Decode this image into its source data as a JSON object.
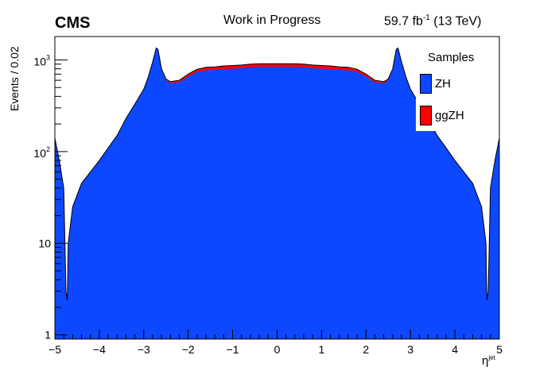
{
  "header": {
    "experiment": "CMS",
    "status": "Work in Progress",
    "lumi_value": "59.7 fb",
    "lumi_exp": "-1",
    "lumi_energy": " (13 TeV)"
  },
  "axes": {
    "ylabel": "Events / 0.02",
    "xlabel_base": "η",
    "xlabel_sup": "jet"
  },
  "legend": {
    "title": "Samples",
    "entries": [
      {
        "label": "ZH",
        "color": "#0d47ff"
      },
      {
        "label": "ggZH",
        "color": "#ff0000"
      }
    ]
  },
  "chart_data": {
    "type": "area",
    "stacked": true,
    "xlim": [
      -5,
      5
    ],
    "ylim": [
      0.9,
      1800
    ],
    "ylog": true,
    "x_ticks": [
      "−5",
      "−4",
      "−3",
      "−2",
      "−1",
      "0",
      "1",
      "2",
      "3",
      "4",
      "5"
    ],
    "y_ticks": [
      {
        "value": 1,
        "label": "1"
      },
      {
        "value": 10,
        "label": "10"
      },
      {
        "value": 100,
        "label": "10",
        "exp": "2"
      },
      {
        "value": 1000,
        "label": "10",
        "exp": "3"
      }
    ],
    "series": [
      {
        "name": "ZH",
        "color": "#0d47ff"
      },
      {
        "name": "ggZH",
        "color": "#ff0000"
      }
    ],
    "x": [
      -5.0,
      -4.9,
      -4.8,
      -4.75,
      -4.72,
      -4.7,
      -4.6,
      -4.4,
      -4.2,
      -4.0,
      -3.8,
      -3.6,
      -3.4,
      -3.2,
      -3.0,
      -2.9,
      -2.8,
      -2.72,
      -2.68,
      -2.6,
      -2.5,
      -2.4,
      -2.2,
      -2.0,
      -1.8,
      -1.6,
      -1.4,
      -1.2,
      -1.0,
      -0.8,
      -0.6,
      -0.4,
      -0.2,
      0.0,
      0.2,
      0.4,
      0.6,
      0.8,
      1.0,
      1.2,
      1.4,
      1.6,
      1.8,
      2.0,
      2.2,
      2.4,
      2.5,
      2.6,
      2.68,
      2.72,
      2.8,
      2.9,
      3.0,
      3.2,
      3.4,
      3.6,
      3.8,
      4.0,
      4.2,
      4.4,
      4.6,
      4.7,
      4.72,
      4.75,
      4.8,
      4.9,
      5.0
    ],
    "values_total": [
      140,
      80,
      40,
      3,
      2.4,
      10,
      25,
      45,
      60,
      80,
      110,
      150,
      230,
      330,
      480,
      650,
      950,
      1350,
      1300,
      800,
      620,
      580,
      600,
      700,
      790,
      830,
      840,
      860,
      870,
      880,
      900,
      910,
      910,
      910,
      910,
      910,
      900,
      880,
      870,
      860,
      840,
      830,
      790,
      700,
      600,
      580,
      620,
      800,
      1300,
      1350,
      950,
      650,
      480,
      330,
      230,
      150,
      110,
      80,
      60,
      45,
      25,
      10,
      2.4,
      3,
      40,
      80,
      140
    ],
    "values_zh": [
      140,
      80,
      40,
      3,
      2.4,
      10,
      25,
      45,
      60,
      80,
      110,
      150,
      230,
      330,
      480,
      650,
      950,
      1350,
      1300,
      800,
      600,
      560,
      570,
      660,
      740,
      770,
      780,
      795,
      805,
      815,
      830,
      840,
      840,
      840,
      840,
      840,
      830,
      815,
      805,
      795,
      780,
      770,
      740,
      660,
      570,
      560,
      600,
      800,
      1300,
      1350,
      950,
      650,
      480,
      330,
      230,
      150,
      110,
      80,
      60,
      45,
      25,
      10,
      2.4,
      3,
      40,
      80,
      140
    ]
  }
}
